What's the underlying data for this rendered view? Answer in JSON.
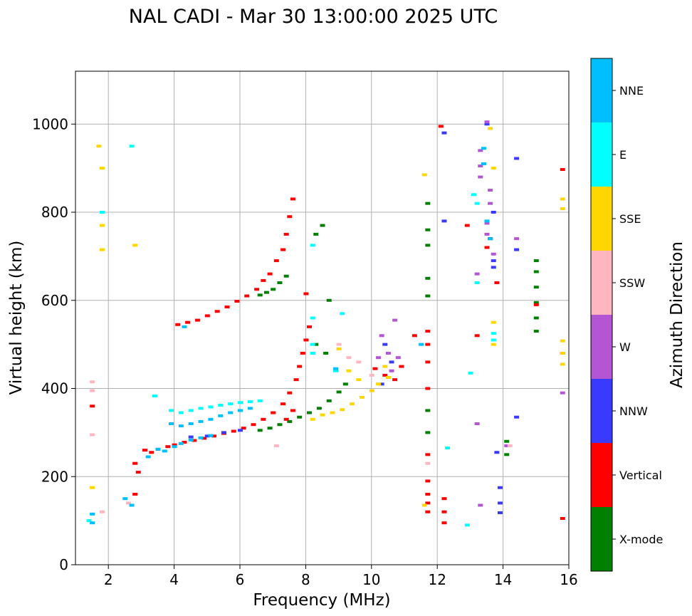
{
  "chart_data": {
    "type": "scatter",
    "title": "NAL CADI - Mar 30 13:00:00 2025 UTC",
    "xlabel": "Frequency (MHz)",
    "ylabel": "Virtual height (km)",
    "xlim": [
      1.0,
      16.0
    ],
    "ylim": [
      0,
      1120
    ],
    "xticks": [
      2,
      4,
      6,
      8,
      10,
      12,
      14,
      16
    ],
    "yticks": [
      0,
      200,
      400,
      600,
      800,
      1000
    ],
    "grid": true,
    "colorbar": {
      "label": "Azimuth Direction",
      "categories": [
        {
          "name": "X-mode",
          "color": "#008000"
        },
        {
          "name": "Vertical",
          "color": "#ff0000"
        },
        {
          "name": "NNW",
          "color": "#3a3aff"
        },
        {
          "name": "W",
          "color": "#b455d4"
        },
        {
          "name": "SSW",
          "color": "#ffb6c1"
        },
        {
          "name": "SSE",
          "color": "#ffd700"
        },
        {
          "name": "E",
          "color": "#00ffff"
        },
        {
          "name": "NNE",
          "color": "#00bfff"
        }
      ]
    },
    "series": [
      {
        "name": "X-mode",
        "points": [
          [
            6.6,
            305
          ],
          [
            6.9,
            310
          ],
          [
            7.2,
            318
          ],
          [
            7.5,
            325
          ],
          [
            7.8,
            335
          ],
          [
            8.1,
            345
          ],
          [
            8.4,
            355
          ],
          [
            8.7,
            372
          ],
          [
            9.0,
            392
          ],
          [
            9.2,
            410
          ],
          [
            7.0,
            625
          ],
          [
            7.2,
            640
          ],
          [
            7.4,
            655
          ],
          [
            6.6,
            612
          ],
          [
            6.8,
            618
          ],
          [
            8.3,
            750
          ],
          [
            8.5,
            770
          ],
          [
            8.7,
            600
          ],
          [
            8.3,
            500
          ],
          [
            8.6,
            480
          ],
          [
            11.7,
            820
          ],
          [
            11.7,
            760
          ],
          [
            11.7,
            725
          ],
          [
            11.7,
            650
          ],
          [
            11.7,
            610
          ],
          [
            11.7,
            350
          ],
          [
            11.7,
            300
          ],
          [
            15.0,
            690
          ],
          [
            15.0,
            665
          ],
          [
            15.0,
            630
          ],
          [
            15.0,
            595
          ],
          [
            15.0,
            560
          ],
          [
            15.0,
            530
          ],
          [
            14.1,
            280
          ],
          [
            14.1,
            250
          ],
          [
            13.6,
            740
          ]
        ]
      },
      {
        "name": "Vertical",
        "points": [
          [
            1.5,
            360
          ],
          [
            2.8,
            230
          ],
          [
            2.9,
            210
          ],
          [
            2.8,
            160
          ],
          [
            3.1,
            260
          ],
          [
            3.3,
            255
          ],
          [
            3.5,
            262
          ],
          [
            3.8,
            268
          ],
          [
            4.0,
            272
          ],
          [
            4.3,
            278
          ],
          [
            4.6,
            282
          ],
          [
            4.9,
            287
          ],
          [
            5.2,
            292
          ],
          [
            5.5,
            298
          ],
          [
            5.8,
            303
          ],
          [
            6.1,
            310
          ],
          [
            6.4,
            318
          ],
          [
            6.7,
            330
          ],
          [
            7.0,
            345
          ],
          [
            7.3,
            365
          ],
          [
            7.5,
            390
          ],
          [
            7.7,
            420
          ],
          [
            7.8,
            450
          ],
          [
            7.9,
            480
          ],
          [
            8.0,
            510
          ],
          [
            8.1,
            540
          ],
          [
            7.4,
            330
          ],
          [
            7.6,
            350
          ],
          [
            4.1,
            545
          ],
          [
            4.4,
            550
          ],
          [
            4.7,
            555
          ],
          [
            5.0,
            565
          ],
          [
            5.3,
            575
          ],
          [
            5.6,
            585
          ],
          [
            5.9,
            598
          ],
          [
            6.2,
            610
          ],
          [
            6.5,
            625
          ],
          [
            6.7,
            645
          ],
          [
            6.9,
            660
          ],
          [
            7.1,
            690
          ],
          [
            7.3,
            715
          ],
          [
            7.4,
            750
          ],
          [
            7.5,
            790
          ],
          [
            7.6,
            830
          ],
          [
            8.0,
            615
          ],
          [
            10.1,
            445
          ],
          [
            10.4,
            430
          ],
          [
            10.7,
            420
          ],
          [
            10.9,
            450
          ],
          [
            11.7,
            530
          ],
          [
            11.7,
            500
          ],
          [
            11.7,
            460
          ],
          [
            11.7,
            400
          ],
          [
            11.7,
            250
          ],
          [
            11.7,
            190
          ],
          [
            11.7,
            160
          ],
          [
            11.7,
            140
          ],
          [
            11.7,
            120
          ],
          [
            12.2,
            150
          ],
          [
            12.2,
            120
          ],
          [
            12.2,
            95
          ],
          [
            12.1,
            995
          ],
          [
            13.2,
            520
          ],
          [
            12.9,
            770
          ],
          [
            13.5,
            720
          ],
          [
            13.8,
            640
          ],
          [
            15.0,
            590
          ],
          [
            15.8,
            480
          ],
          [
            15.8,
            105
          ],
          [
            15.8,
            897
          ],
          [
            11.3,
            520
          ]
        ]
      },
      {
        "name": "NNW",
        "points": [
          [
            4.5,
            290
          ],
          [
            5.0,
            292
          ],
          [
            5.5,
            300
          ],
          [
            6.0,
            305
          ],
          [
            10.3,
            410
          ],
          [
            10.4,
            500
          ],
          [
            10.6,
            460
          ],
          [
            13.9,
            175
          ],
          [
            13.9,
            140
          ],
          [
            13.9,
            118
          ],
          [
            13.8,
            255
          ],
          [
            14.4,
            335
          ],
          [
            14.4,
            715
          ],
          [
            14.4,
            922
          ],
          [
            12.2,
            980
          ],
          [
            13.6,
            740
          ],
          [
            13.7,
            690
          ],
          [
            13.7,
            675
          ],
          [
            13.7,
            800
          ],
          [
            12.2,
            780
          ],
          [
            13.5,
            1000
          ]
        ]
      },
      {
        "name": "W",
        "points": [
          [
            10.2,
            470
          ],
          [
            10.5,
            480
          ],
          [
            10.6,
            440
          ],
          [
            10.8,
            470
          ],
          [
            10.3,
            520
          ],
          [
            13.5,
            1005
          ],
          [
            13.3,
            940
          ],
          [
            13.3,
            905
          ],
          [
            13.3,
            880
          ],
          [
            13.6,
            850
          ],
          [
            13.6,
            820
          ],
          [
            13.5,
            775
          ],
          [
            13.5,
            750
          ],
          [
            13.7,
            705
          ],
          [
            13.2,
            660
          ],
          [
            13.2,
            320
          ],
          [
            13.3,
            135
          ],
          [
            14.4,
            740
          ],
          [
            14.1,
            270
          ],
          [
            15.8,
            390
          ],
          [
            10.7,
            555
          ]
        ]
      },
      {
        "name": "SSW",
        "points": [
          [
            1.5,
            415
          ],
          [
            1.5,
            395
          ],
          [
            1.5,
            295
          ],
          [
            1.8,
            120
          ],
          [
            2.6,
            140
          ],
          [
            9.0,
            500
          ],
          [
            9.3,
            470
          ],
          [
            9.6,
            460
          ],
          [
            10.0,
            430
          ],
          [
            11.7,
            230
          ],
          [
            14.2,
            270
          ],
          [
            7.1,
            270
          ]
        ]
      },
      {
        "name": "SSE",
        "points": [
          [
            1.5,
            175
          ],
          [
            1.7,
            950
          ],
          [
            1.8,
            900
          ],
          [
            1.8,
            770
          ],
          [
            1.8,
            715
          ],
          [
            2.8,
            725
          ],
          [
            8.2,
            330
          ],
          [
            8.5,
            340
          ],
          [
            8.8,
            345
          ],
          [
            9.1,
            352
          ],
          [
            9.4,
            365
          ],
          [
            9.7,
            380
          ],
          [
            10.0,
            395
          ],
          [
            10.2,
            410
          ],
          [
            10.5,
            425
          ],
          [
            9.0,
            490
          ],
          [
            9.3,
            440
          ],
          [
            9.6,
            420
          ],
          [
            10.4,
            450
          ],
          [
            11.6,
            885
          ],
          [
            11.6,
            135
          ],
          [
            13.6,
            990
          ],
          [
            13.7,
            900
          ],
          [
            13.7,
            550
          ],
          [
            13.7,
            500
          ],
          [
            15.8,
            830
          ],
          [
            15.8,
            808
          ],
          [
            15.8,
            508
          ],
          [
            15.8,
            455
          ],
          [
            15.8,
            480
          ]
        ]
      },
      {
        "name": "E",
        "points": [
          [
            1.4,
            100
          ],
          [
            1.8,
            800
          ],
          [
            2.7,
            950
          ],
          [
            3.4,
            383
          ],
          [
            3.9,
            350
          ],
          [
            4.2,
            345
          ],
          [
            4.5,
            350
          ],
          [
            4.8,
            355
          ],
          [
            5.1,
            358
          ],
          [
            5.4,
            362
          ],
          [
            5.7,
            365
          ],
          [
            6.0,
            368
          ],
          [
            6.3,
            370
          ],
          [
            6.6,
            372
          ],
          [
            8.2,
            725
          ],
          [
            8.2,
            560
          ],
          [
            8.2,
            500
          ],
          [
            8.2,
            480
          ],
          [
            8.9,
            440
          ],
          [
            9.1,
            570
          ],
          [
            13.1,
            840
          ],
          [
            13.2,
            820
          ],
          [
            13.7,
            525
          ],
          [
            13.7,
            510
          ],
          [
            13.0,
            435
          ],
          [
            12.9,
            90
          ],
          [
            12.3,
            265
          ],
          [
            13.2,
            640
          ]
        ]
      },
      {
        "name": "NNE",
        "points": [
          [
            1.5,
            115
          ],
          [
            1.5,
            95
          ],
          [
            2.5,
            150
          ],
          [
            2.7,
            135
          ],
          [
            3.2,
            245
          ],
          [
            3.5,
            262
          ],
          [
            3.7,
            258
          ],
          [
            4.0,
            268
          ],
          [
            4.2,
            275
          ],
          [
            4.5,
            283
          ],
          [
            4.8,
            288
          ],
          [
            5.1,
            293
          ],
          [
            3.9,
            320
          ],
          [
            4.2,
            315
          ],
          [
            4.5,
            320
          ],
          [
            4.8,
            325
          ],
          [
            5.1,
            330
          ],
          [
            5.4,
            338
          ],
          [
            5.7,
            345
          ],
          [
            6.0,
            350
          ],
          [
            6.3,
            355
          ],
          [
            4.3,
            540
          ],
          [
            8.9,
            445
          ],
          [
            11.5,
            500
          ],
          [
            13.4,
            945
          ],
          [
            13.4,
            910
          ],
          [
            13.6,
            740
          ],
          [
            13.5,
            780
          ]
        ]
      }
    ]
  }
}
